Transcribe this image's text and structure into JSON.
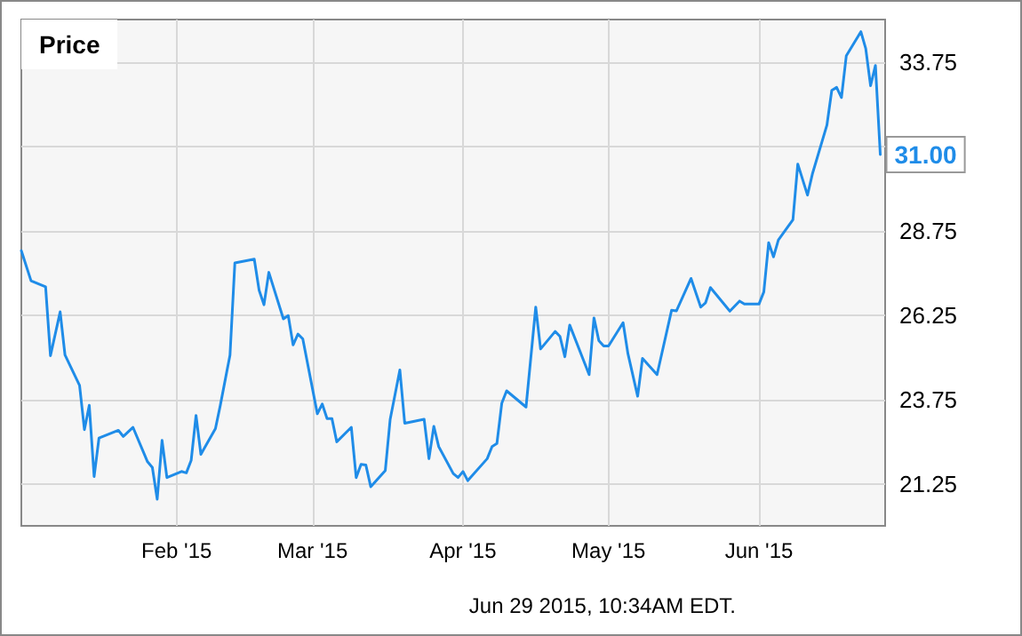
{
  "chart_data": {
    "type": "line",
    "title": "Price",
    "annotations": [
      {
        "text": "31.00",
        "x": "2015-06-26",
        "y": 31
      },
      "Jun 29 2015, 10:34AM EDT."
    ],
    "x": [
      "2014-12-31",
      "2015-01-02",
      "2015-01-05",
      "2015-01-06",
      "2015-01-08",
      "2015-01-09",
      "2015-01-12",
      "2015-01-13",
      "2015-01-14",
      "2015-01-15",
      "2015-01-16",
      "2015-01-20",
      "2015-01-21",
      "2015-01-23",
      "2015-01-26",
      "2015-01-27",
      "2015-01-28",
      "2015-01-29",
      "2015-01-30",
      "2015-02-02",
      "2015-02-03",
      "2015-02-04",
      "2015-02-05",
      "2015-02-06",
      "2015-02-09",
      "2015-02-10",
      "2015-02-12",
      "2015-02-13",
      "2015-02-17",
      "2015-02-18",
      "2015-02-19",
      "2015-02-20",
      "2015-02-23",
      "2015-02-24",
      "2015-02-25",
      "2015-02-26",
      "2015-02-27",
      "2015-03-02",
      "2015-03-03",
      "2015-03-04",
      "2015-03-05",
      "2015-03-06",
      "2015-03-09",
      "2015-03-10",
      "2015-03-11",
      "2015-03-12",
      "2015-03-13",
      "2015-03-16",
      "2015-03-17",
      "2015-03-19",
      "2015-03-20",
      "2015-03-24",
      "2015-03-25",
      "2015-03-26",
      "2015-03-27",
      "2015-03-30",
      "2015-03-31",
      "2015-04-01",
      "2015-04-02",
      "2015-04-06",
      "2015-04-07",
      "2015-04-08",
      "2015-04-09",
      "2015-04-10",
      "2015-04-14",
      "2015-04-16",
      "2015-04-17",
      "2015-04-20",
      "2015-04-21",
      "2015-04-22",
      "2015-04-23",
      "2015-04-27",
      "2015-04-28",
      "2015-04-29",
      "2015-04-30",
      "2015-05-01",
      "2015-05-04",
      "2015-05-05",
      "2015-05-07",
      "2015-05-08",
      "2015-05-11",
      "2015-05-14",
      "2015-05-15",
      "2015-05-18",
      "2015-05-20",
      "2015-05-21",
      "2015-05-22",
      "2015-05-26",
      "2015-05-28",
      "2015-05-29",
      "2015-06-01",
      "2015-06-02",
      "2015-06-03",
      "2015-06-04",
      "2015-06-05",
      "2015-06-08",
      "2015-06-09",
      "2015-06-11",
      "2015-06-12",
      "2015-06-15",
      "2015-06-16",
      "2015-06-17",
      "2015-06-18",
      "2015-06-19",
      "2015-06-22",
      "2015-06-23",
      "2015-06-24",
      "2015-06-25",
      "2015-06-26"
    ],
    "series": [
      {
        "color": "#1f8ce8",
        "values": [
          28.15,
          27.26,
          27.08,
          25.04,
          26.34,
          25.06,
          24.16,
          22.85,
          23.57,
          21.46,
          22.6,
          22.83,
          22.65,
          22.92,
          21.9,
          21.73,
          20.79,
          22.53,
          21.43,
          21.61,
          21.57,
          21.94,
          23.27,
          22.12,
          22.88,
          23.57,
          25.06,
          27.79,
          27.9,
          26.98,
          26.55,
          27.51,
          26.13,
          26.23,
          25.36,
          25.68,
          25.54,
          23.32,
          23.61,
          23.18,
          23.18,
          22.49,
          22.92,
          21.43,
          21.82,
          21.8,
          21.16,
          21.64,
          23.15,
          24.62,
          23.04,
          23.16,
          21.99,
          22.95,
          22.35,
          21.55,
          21.43,
          21.61,
          21.34,
          21.99,
          22.35,
          22.44,
          23.63,
          24.0,
          23.52,
          26.48,
          25.24,
          25.76,
          25.61,
          25.01,
          25.95,
          24.48,
          26.16,
          25.49,
          25.33,
          25.33,
          26.02,
          25.1,
          23.84,
          24.96,
          24.48,
          26.39,
          26.37,
          27.33,
          26.48,
          26.61,
          27.06,
          26.36,
          26.66,
          26.57,
          26.57,
          26.93,
          28.39,
          27.97,
          28.47,
          29.07,
          30.72,
          29.8,
          30.42,
          31.87,
          32.9,
          32.99,
          32.69,
          33.93,
          34.64,
          34.14,
          33.04,
          33.64,
          31.0
        ]
      }
    ],
    "xlim": [
      "2014-12-31",
      "2015-06-27"
    ],
    "xticks": [
      {
        "value": "2015-02-01",
        "label": "Feb '15"
      },
      {
        "value": "2015-03-01",
        "label": "Mar '15"
      },
      {
        "value": "2015-04-01",
        "label": "Apr '15"
      },
      {
        "value": "2015-05-01",
        "label": "May '15"
      },
      {
        "value": "2015-06-01",
        "label": "Jun '15"
      }
    ],
    "ylim": [
      20,
      35
    ],
    "yticks": [
      21.25,
      23.75,
      26.25,
      28.75,
      {
        "value": 31.25,
        "label": null
      },
      33.75
    ],
    "grid": true,
    "marker": "none",
    "line_style": "solid"
  }
}
